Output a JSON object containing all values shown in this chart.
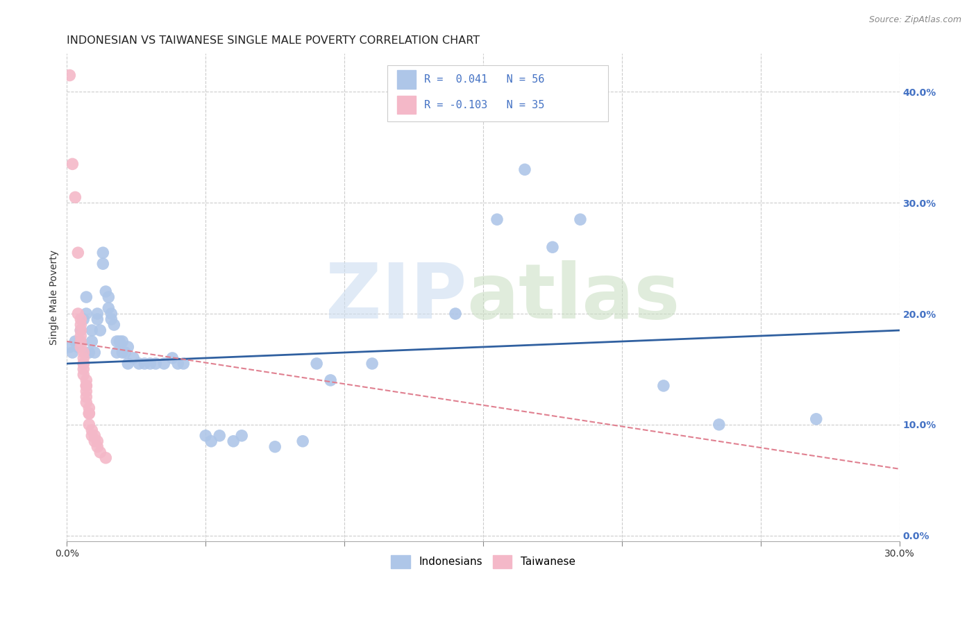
{
  "title": "INDONESIAN VS TAIWANESE SINGLE MALE POVERTY CORRELATION CHART",
  "source": "Source: ZipAtlas.com",
  "ylabel": "Single Male Poverty",
  "xlim": [
    0.0,
    0.3
  ],
  "ylim": [
    -0.005,
    0.435
  ],
  "yticks_right": [
    0.0,
    0.1,
    0.2,
    0.3,
    0.4
  ],
  "indonesian_line_start_y": 0.155,
  "indonesian_line_end_y": 0.185,
  "taiwanese_line_start_y": 0.175,
  "taiwanese_line_end_y": 0.06,
  "indonesian_line_color": "#3060a0",
  "taiwanese_line_color": "#e08090",
  "dot_color_blue": "#aec6e8",
  "dot_color_pink": "#f4b8c8",
  "background_color": "#ffffff",
  "grid_color": "#cccccc",
  "indonesian_dots": [
    [
      0.001,
      0.17
    ],
    [
      0.002,
      0.165
    ],
    [
      0.003,
      0.175
    ],
    [
      0.004,
      0.17
    ],
    [
      0.005,
      0.185
    ],
    [
      0.005,
      0.175
    ],
    [
      0.006,
      0.195
    ],
    [
      0.007,
      0.215
    ],
    [
      0.007,
      0.2
    ],
    [
      0.008,
      0.165
    ],
    [
      0.009,
      0.185
    ],
    [
      0.009,
      0.175
    ],
    [
      0.01,
      0.165
    ],
    [
      0.011,
      0.195
    ],
    [
      0.011,
      0.2
    ],
    [
      0.012,
      0.185
    ],
    [
      0.013,
      0.245
    ],
    [
      0.013,
      0.255
    ],
    [
      0.014,
      0.22
    ],
    [
      0.015,
      0.215
    ],
    [
      0.015,
      0.205
    ],
    [
      0.016,
      0.2
    ],
    [
      0.016,
      0.195
    ],
    [
      0.017,
      0.19
    ],
    [
      0.018,
      0.175
    ],
    [
      0.018,
      0.165
    ],
    [
      0.019,
      0.175
    ],
    [
      0.02,
      0.165
    ],
    [
      0.02,
      0.175
    ],
    [
      0.021,
      0.165
    ],
    [
      0.022,
      0.155
    ],
    [
      0.022,
      0.17
    ],
    [
      0.024,
      0.16
    ],
    [
      0.026,
      0.155
    ],
    [
      0.028,
      0.155
    ],
    [
      0.03,
      0.155
    ],
    [
      0.032,
      0.155
    ],
    [
      0.035,
      0.155
    ],
    [
      0.038,
      0.16
    ],
    [
      0.04,
      0.155
    ],
    [
      0.042,
      0.155
    ],
    [
      0.05,
      0.09
    ],
    [
      0.052,
      0.085
    ],
    [
      0.055,
      0.09
    ],
    [
      0.06,
      0.085
    ],
    [
      0.063,
      0.09
    ],
    [
      0.075,
      0.08
    ],
    [
      0.085,
      0.085
    ],
    [
      0.09,
      0.155
    ],
    [
      0.095,
      0.14
    ],
    [
      0.11,
      0.155
    ],
    [
      0.14,
      0.2
    ],
    [
      0.155,
      0.285
    ],
    [
      0.165,
      0.33
    ],
    [
      0.175,
      0.26
    ],
    [
      0.185,
      0.285
    ],
    [
      0.215,
      0.135
    ],
    [
      0.235,
      0.1
    ],
    [
      0.27,
      0.105
    ]
  ],
  "taiwanese_dots": [
    [
      0.001,
      0.415
    ],
    [
      0.002,
      0.335
    ],
    [
      0.003,
      0.305
    ],
    [
      0.004,
      0.255
    ],
    [
      0.004,
      0.2
    ],
    [
      0.005,
      0.195
    ],
    [
      0.005,
      0.19
    ],
    [
      0.005,
      0.185
    ],
    [
      0.005,
      0.18
    ],
    [
      0.005,
      0.175
    ],
    [
      0.005,
      0.17
    ],
    [
      0.006,
      0.165
    ],
    [
      0.006,
      0.16
    ],
    [
      0.006,
      0.155
    ],
    [
      0.006,
      0.155
    ],
    [
      0.006,
      0.15
    ],
    [
      0.006,
      0.145
    ],
    [
      0.007,
      0.14
    ],
    [
      0.007,
      0.135
    ],
    [
      0.007,
      0.135
    ],
    [
      0.007,
      0.13
    ],
    [
      0.007,
      0.125
    ],
    [
      0.007,
      0.12
    ],
    [
      0.008,
      0.115
    ],
    [
      0.008,
      0.11
    ],
    [
      0.008,
      0.11
    ],
    [
      0.008,
      0.1
    ],
    [
      0.009,
      0.095
    ],
    [
      0.009,
      0.09
    ],
    [
      0.01,
      0.09
    ],
    [
      0.01,
      0.085
    ],
    [
      0.011,
      0.085
    ],
    [
      0.011,
      0.08
    ],
    [
      0.012,
      0.075
    ],
    [
      0.014,
      0.07
    ]
  ],
  "title_fontsize": 11.5,
  "tick_fontsize": 10,
  "ylabel_fontsize": 10
}
